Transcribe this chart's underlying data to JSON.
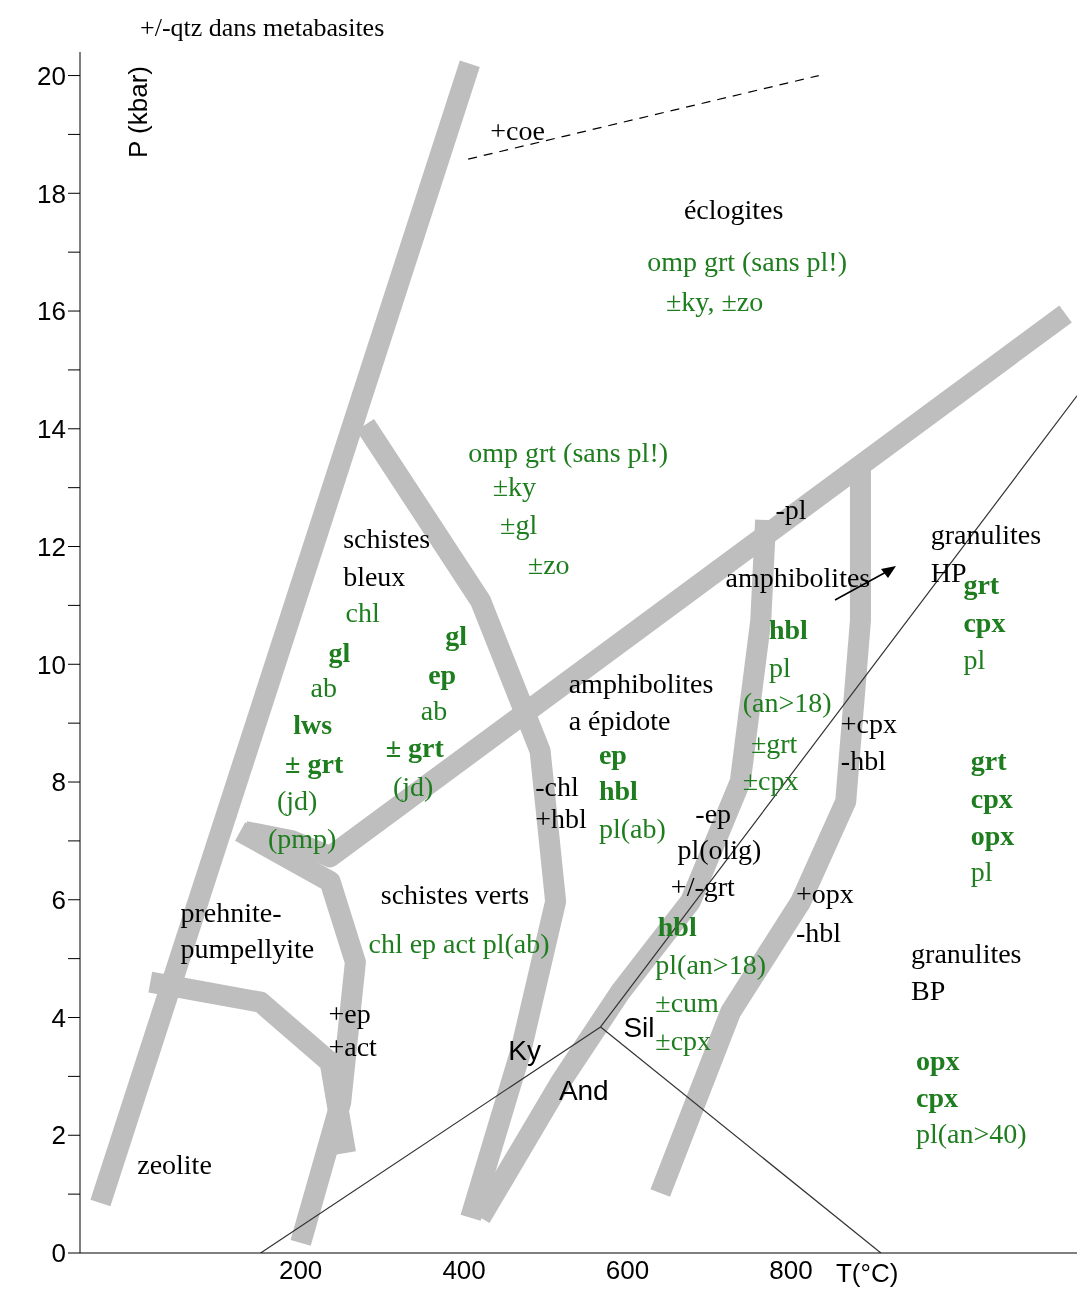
{
  "chart_data": {
    "type": "line",
    "title": "+/-qtz dans metabasites",
    "xlabel": "T(°C)",
    "ylabel": "P (kbar)",
    "xlim": [
      -70,
      1150
    ],
    "xticks": [
      200,
      400,
      600,
      800
    ],
    "ylim": [
      0,
      20.4
    ],
    "yticks": [
      0,
      {
        "value": 1,
        "label": null
      },
      2,
      {
        "value": 3,
        "label": null
      },
      4,
      {
        "value": 5,
        "label": null
      },
      6,
      {
        "value": 7,
        "label": null
      },
      8,
      {
        "value": 9,
        "label": null
      },
      10,
      {
        "value": 11,
        "label": null
      },
      12,
      {
        "value": 13,
        "label": null
      },
      14,
      {
        "value": 15,
        "label": null
      },
      16,
      {
        "value": 17,
        "label": null
      },
      18,
      {
        "value": 19,
        "label": null
      },
      20
    ],
    "marker": "none",
    "series": [
      {
        "color": "#bebebe",
        "x": [
          -45,
          407
        ],
        "values": [
          0.85,
          20.2
        ]
      },
      {
        "color": "#bebebe",
        "x": [
          279,
          420,
          493,
          512,
          469,
          408
        ],
        "values": [
          14.07,
          11.08,
          8.53,
          5.97,
          3.41,
          0.6
        ]
      },
      {
        "color": "#bebebe",
        "x": [
          132,
          190,
          236,
          1136
        ],
        "values": [
          7.16,
          7.0,
          6.73,
          15.95
        ]
      },
      {
        "color": "#bebebe",
        "x": [
          126,
          236,
          267,
          249,
          200
        ],
        "values": [
          7.16,
          6.31,
          4.94,
          2.56,
          0.17
        ]
      },
      {
        "color": "#bebebe",
        "x": [
          16,
          151,
          236,
          255
        ],
        "values": [
          4.6,
          4.26,
          3.24,
          1.7
        ]
      },
      {
        "color": "#bebebe",
        "x": [
          769,
          763,
          738,
          677,
          591,
          518,
          420
        ],
        "values": [
          12.45,
          10.74,
          8.01,
          5.97,
          4.43,
          2.9,
          0.6
        ]
      },
      {
        "color": "#bebebe",
        "x": [
          885,
          885,
          867,
          812,
          726,
          640
        ],
        "values": [
          13.38,
          10.74,
          7.67,
          5.97,
          4.09,
          1.02
        ]
      },
      {
        "color": "#000000",
        "line_style": "dashed",
        "x": [
          405,
          834
        ],
        "values": [
          18.58,
          20.0
        ]
      },
      {
        "color": "#333333",
        "x": [
          151,
          567,
          1150
        ],
        "values": [
          0,
          3.84,
          14.56
        ]
      },
      {
        "color": "#333333",
        "x": [
          567,
          910
        ],
        "values": [
          3.84,
          0
        ]
      }
    ],
    "annotations": [
      "+coe",
      "éclogites",
      "omp grt (sans pl!)",
      "±ky, ±zo",
      "omp grt (sans pl!)",
      "±ky",
      "±gl",
      "±zo",
      "-pl",
      "granulites",
      "HP",
      "grt",
      "cpx",
      "pl",
      "amphibolites",
      "schistes",
      "bleux",
      "chl",
      "gl",
      "ab",
      "lws",
      "± grt",
      "(jd)",
      "(pmp)",
      "gl",
      "ep",
      "ab",
      "± grt",
      "(jd)",
      "hbl",
      "pl",
      "(an>18)",
      "±grt",
      "±cpx",
      "+cpx",
      "-hbl",
      "amphibolites",
      "a épidote",
      "ep",
      "hbl",
      "-chl",
      "+hbl",
      "pl(ab)",
      "-ep",
      "pl(olig)",
      "+/-grt",
      "+opx",
      "-hbl",
      "schistes verts",
      "chl ep act pl(ab)",
      "prehnite-",
      "pumpellyite",
      "hbl",
      "pl(an>18)",
      "±cum",
      "±cpx",
      "grt",
      "cpx",
      "opx",
      "pl",
      "granulites",
      "BP",
      "opx",
      "cpx",
      "pl(an>40)",
      "+ep",
      "+act",
      "Ky",
      "Sil",
      "And",
      "zeolite"
    ]
  }
}
